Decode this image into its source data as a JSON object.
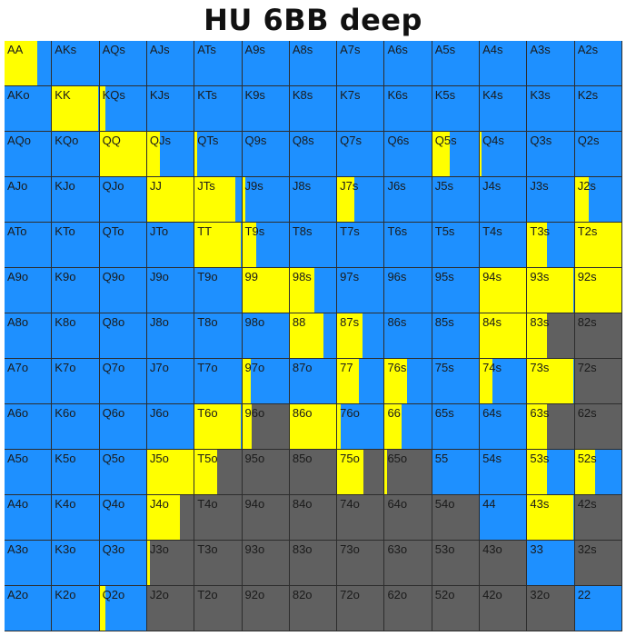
{
  "title": "HU 6BB deep",
  "colors": {
    "blue": "#1E90FF",
    "yellow": "#FFFF00",
    "gray": "#606060"
  },
  "chart_data": {
    "type": "heatmap",
    "title": "HU 6BB deep",
    "rows": [
      [
        {
          "l": "AA",
          "y": 0.7,
          "b": 0.3,
          "g": 0
        },
        {
          "l": "AKs",
          "y": 0,
          "b": 1,
          "g": 0
        },
        {
          "l": "AQs",
          "y": 0,
          "b": 1,
          "g": 0
        },
        {
          "l": "AJs",
          "y": 0,
          "b": 1,
          "g": 0
        },
        {
          "l": "ATs",
          "y": 0,
          "b": 1,
          "g": 0
        },
        {
          "l": "A9s",
          "y": 0,
          "b": 1,
          "g": 0
        },
        {
          "l": "A8s",
          "y": 0,
          "b": 1,
          "g": 0
        },
        {
          "l": "A7s",
          "y": 0,
          "b": 1,
          "g": 0
        },
        {
          "l": "A6s",
          "y": 0,
          "b": 1,
          "g": 0
        },
        {
          "l": "A5s",
          "y": 0,
          "b": 1,
          "g": 0
        },
        {
          "l": "A4s",
          "y": 0,
          "b": 1,
          "g": 0
        },
        {
          "l": "A3s",
          "y": 0,
          "b": 1,
          "g": 0
        },
        {
          "l": "A2s",
          "y": 0,
          "b": 1,
          "g": 0
        }
      ],
      [
        {
          "l": "AKo",
          "y": 0,
          "b": 1,
          "g": 0
        },
        {
          "l": "KK",
          "y": 1,
          "b": 0,
          "g": 0
        },
        {
          "l": "KQs",
          "y": 0.12,
          "b": 0.88,
          "g": 0
        },
        {
          "l": "KJs",
          "y": 0,
          "b": 1,
          "g": 0
        },
        {
          "l": "KTs",
          "y": 0,
          "b": 1,
          "g": 0
        },
        {
          "l": "K9s",
          "y": 0,
          "b": 1,
          "g": 0
        },
        {
          "l": "K8s",
          "y": 0,
          "b": 1,
          "g": 0
        },
        {
          "l": "K7s",
          "y": 0,
          "b": 1,
          "g": 0
        },
        {
          "l": "K6s",
          "y": 0,
          "b": 1,
          "g": 0
        },
        {
          "l": "K5s",
          "y": 0,
          "b": 1,
          "g": 0
        },
        {
          "l": "K4s",
          "y": 0,
          "b": 1,
          "g": 0
        },
        {
          "l": "K3s",
          "y": 0,
          "b": 1,
          "g": 0
        },
        {
          "l": "K2s",
          "y": 0,
          "b": 1,
          "g": 0
        }
      ],
      [
        {
          "l": "AQo",
          "y": 0,
          "b": 1,
          "g": 0
        },
        {
          "l": "KQo",
          "y": 0,
          "b": 1,
          "g": 0
        },
        {
          "l": "QQ",
          "y": 1,
          "b": 0,
          "g": 0
        },
        {
          "l": "QJs",
          "y": 0.27,
          "b": 0.73,
          "g": 0
        },
        {
          "l": "QTs",
          "y": 0.06,
          "b": 0.94,
          "g": 0
        },
        {
          "l": "Q9s",
          "y": 0,
          "b": 1,
          "g": 0
        },
        {
          "l": "Q8s",
          "y": 0,
          "b": 1,
          "g": 0
        },
        {
          "l": "Q7s",
          "y": 0,
          "b": 1,
          "g": 0
        },
        {
          "l": "Q6s",
          "y": 0,
          "b": 1,
          "g": 0
        },
        {
          "l": "Q5s",
          "y": 0.38,
          "b": 0.62,
          "g": 0
        },
        {
          "l": "Q4s",
          "y": 0.04,
          "b": 0.96,
          "g": 0
        },
        {
          "l": "Q3s",
          "y": 0,
          "b": 1,
          "g": 0
        },
        {
          "l": "Q2s",
          "y": 0,
          "b": 1,
          "g": 0
        }
      ],
      [
        {
          "l": "AJo",
          "y": 0,
          "b": 1,
          "g": 0
        },
        {
          "l": "KJo",
          "y": 0,
          "b": 1,
          "g": 0
        },
        {
          "l": "QJo",
          "y": 0,
          "b": 1,
          "g": 0
        },
        {
          "l": "JJ",
          "y": 1,
          "b": 0,
          "g": 0
        },
        {
          "l": "JTs",
          "y": 0.88,
          "b": 0.12,
          "g": 0
        },
        {
          "l": "J9s",
          "y": 0.06,
          "b": 0.94,
          "g": 0
        },
        {
          "l": "J8s",
          "y": 0,
          "b": 1,
          "g": 0
        },
        {
          "l": "J7s",
          "y": 0.38,
          "b": 0.62,
          "g": 0
        },
        {
          "l": "J6s",
          "y": 0,
          "b": 1,
          "g": 0
        },
        {
          "l": "J5s",
          "y": 0,
          "b": 1,
          "g": 0
        },
        {
          "l": "J4s",
          "y": 0,
          "b": 1,
          "g": 0
        },
        {
          "l": "J3s",
          "y": 0,
          "b": 1,
          "g": 0
        },
        {
          "l": "J2s",
          "y": 0.3,
          "b": 0.7,
          "g": 0
        }
      ],
      [
        {
          "l": "ATo",
          "y": 0,
          "b": 1,
          "g": 0
        },
        {
          "l": "KTo",
          "y": 0,
          "b": 1,
          "g": 0
        },
        {
          "l": "QTo",
          "y": 0,
          "b": 1,
          "g": 0
        },
        {
          "l": "JTo",
          "y": 0,
          "b": 1,
          "g": 0
        },
        {
          "l": "TT",
          "y": 1,
          "b": 0,
          "g": 0
        },
        {
          "l": "T9s",
          "y": 0.3,
          "b": 0.7,
          "g": 0
        },
        {
          "l": "T8s",
          "y": 0,
          "b": 1,
          "g": 0
        },
        {
          "l": "T7s",
          "y": 0,
          "b": 1,
          "g": 0
        },
        {
          "l": "T6s",
          "y": 0,
          "b": 1,
          "g": 0
        },
        {
          "l": "T5s",
          "y": 0,
          "b": 1,
          "g": 0
        },
        {
          "l": "T4s",
          "y": 0,
          "b": 1,
          "g": 0
        },
        {
          "l": "T3s",
          "y": 0.42,
          "b": 0.58,
          "g": 0
        },
        {
          "l": "T2s",
          "y": 1,
          "b": 0,
          "g": 0
        }
      ],
      [
        {
          "l": "A9o",
          "y": 0,
          "b": 1,
          "g": 0
        },
        {
          "l": "K9o",
          "y": 0,
          "b": 1,
          "g": 0
        },
        {
          "l": "Q9o",
          "y": 0,
          "b": 1,
          "g": 0
        },
        {
          "l": "J9o",
          "y": 0,
          "b": 1,
          "g": 0
        },
        {
          "l": "T9o",
          "y": 0,
          "b": 1,
          "g": 0
        },
        {
          "l": "99",
          "y": 1,
          "b": 0,
          "g": 0
        },
        {
          "l": "98s",
          "y": 0.52,
          "b": 0.48,
          "g": 0
        },
        {
          "l": "97s",
          "y": 0,
          "b": 1,
          "g": 0
        },
        {
          "l": "96s",
          "y": 0,
          "b": 1,
          "g": 0
        },
        {
          "l": "95s",
          "y": 0,
          "b": 1,
          "g": 0
        },
        {
          "l": "94s",
          "y": 1,
          "b": 0,
          "g": 0
        },
        {
          "l": "93s",
          "y": 1,
          "b": 0,
          "g": 0
        },
        {
          "l": "92s",
          "y": 1,
          "b": 0,
          "g": 0
        }
      ],
      [
        {
          "l": "A8o",
          "y": 0,
          "b": 1,
          "g": 0
        },
        {
          "l": "K8o",
          "y": 0,
          "b": 1,
          "g": 0
        },
        {
          "l": "Q8o",
          "y": 0,
          "b": 1,
          "g": 0
        },
        {
          "l": "J8o",
          "y": 0,
          "b": 1,
          "g": 0
        },
        {
          "l": "T8o",
          "y": 0,
          "b": 1,
          "g": 0
        },
        {
          "l": "98o",
          "y": 0,
          "b": 1,
          "g": 0
        },
        {
          "l": "88",
          "y": 0.72,
          "b": 0.28,
          "g": 0
        },
        {
          "l": "87s",
          "y": 0.54,
          "b": 0.46,
          "g": 0
        },
        {
          "l": "86s",
          "y": 0,
          "b": 1,
          "g": 0
        },
        {
          "l": "85s",
          "y": 0,
          "b": 1,
          "g": 0
        },
        {
          "l": "84s",
          "y": 1,
          "b": 0,
          "g": 0
        },
        {
          "l": "83s",
          "y": 0.42,
          "b": 0,
          "g": 0.58
        },
        {
          "l": "82s",
          "y": 0,
          "b": 0,
          "g": 1
        }
      ],
      [
        {
          "l": "A7o",
          "y": 0,
          "b": 1,
          "g": 0
        },
        {
          "l": "K7o",
          "y": 0,
          "b": 1,
          "g": 0
        },
        {
          "l": "Q7o",
          "y": 0,
          "b": 1,
          "g": 0
        },
        {
          "l": "J7o",
          "y": 0,
          "b": 1,
          "g": 0
        },
        {
          "l": "T7o",
          "y": 0,
          "b": 1,
          "g": 0
        },
        {
          "l": "97o",
          "y": 0.17,
          "b": 0.83,
          "g": 0
        },
        {
          "l": "87o",
          "y": 0,
          "b": 1,
          "g": 0
        },
        {
          "l": "77",
          "y": 0.46,
          "b": 0.54,
          "g": 0
        },
        {
          "l": "76s",
          "y": 0.48,
          "b": 0.52,
          "g": 0
        },
        {
          "l": "75s",
          "y": 0,
          "b": 1,
          "g": 0
        },
        {
          "l": "74s",
          "y": 0.27,
          "b": 0.73,
          "g": 0
        },
        {
          "l": "73s",
          "y": 1,
          "b": 0,
          "g": 0
        },
        {
          "l": "72s",
          "y": 0,
          "b": 0,
          "g": 1
        }
      ],
      [
        {
          "l": "A6o",
          "y": 0,
          "b": 1,
          "g": 0
        },
        {
          "l": "K6o",
          "y": 0,
          "b": 1,
          "g": 0
        },
        {
          "l": "Q6o",
          "y": 0,
          "b": 1,
          "g": 0
        },
        {
          "l": "J6o",
          "y": 0,
          "b": 1,
          "g": 0
        },
        {
          "l": "T6o",
          "y": 1,
          "b": 0,
          "g": 0
        },
        {
          "l": "96o",
          "y": 0.2,
          "b": 0,
          "g": 0.8
        },
        {
          "l": "86o",
          "y": 1,
          "b": 0,
          "g": 0
        },
        {
          "l": "76o",
          "y": 0.08,
          "b": 0.92,
          "g": 0
        },
        {
          "l": "66",
          "y": 0.38,
          "b": 0.62,
          "g": 0
        },
        {
          "l": "65s",
          "y": 0,
          "b": 1,
          "g": 0
        },
        {
          "l": "64s",
          "y": 0,
          "b": 1,
          "g": 0
        },
        {
          "l": "63s",
          "y": 0.42,
          "b": 0,
          "g": 0.58
        },
        {
          "l": "62s",
          "y": 0,
          "b": 0,
          "g": 1
        }
      ],
      [
        {
          "l": "A5o",
          "y": 0,
          "b": 1,
          "g": 0
        },
        {
          "l": "K5o",
          "y": 0,
          "b": 1,
          "g": 0
        },
        {
          "l": "Q5o",
          "y": 0,
          "b": 1,
          "g": 0
        },
        {
          "l": "J5o",
          "y": 1,
          "b": 0,
          "g": 0
        },
        {
          "l": "T5o",
          "y": 0.48,
          "b": 0,
          "g": 0.52
        },
        {
          "l": "95o",
          "y": 0,
          "b": 0,
          "g": 1
        },
        {
          "l": "85o",
          "y": 0,
          "b": 0,
          "g": 1
        },
        {
          "l": "75o",
          "y": 0.56,
          "b": 0,
          "g": 0.44
        },
        {
          "l": "65o",
          "y": 0.06,
          "b": 0,
          "g": 0.94
        },
        {
          "l": "55",
          "y": 0,
          "b": 1,
          "g": 0
        },
        {
          "l": "54s",
          "y": 0,
          "b": 1,
          "g": 0
        },
        {
          "l": "53s",
          "y": 0.42,
          "b": 0.58,
          "g": 0
        },
        {
          "l": "52s",
          "y": 0.42,
          "b": 0.58,
          "g": 0
        }
      ],
      [
        {
          "l": "A4o",
          "y": 0,
          "b": 1,
          "g": 0
        },
        {
          "l": "K4o",
          "y": 0,
          "b": 1,
          "g": 0
        },
        {
          "l": "Q4o",
          "y": 0,
          "b": 1,
          "g": 0
        },
        {
          "l": "J4o",
          "y": 0.7,
          "b": 0,
          "g": 0.3
        },
        {
          "l": "T4o",
          "y": 0,
          "b": 0,
          "g": 1
        },
        {
          "l": "94o",
          "y": 0,
          "b": 0,
          "g": 1
        },
        {
          "l": "84o",
          "y": 0,
          "b": 0,
          "g": 1
        },
        {
          "l": "74o",
          "y": 0,
          "b": 0,
          "g": 1
        },
        {
          "l": "64o",
          "y": 0,
          "b": 0,
          "g": 1
        },
        {
          "l": "54o",
          "y": 0,
          "b": 0,
          "g": 1
        },
        {
          "l": "44",
          "y": 0,
          "b": 1,
          "g": 0
        },
        {
          "l": "43s",
          "y": 1,
          "b": 0,
          "g": 0
        },
        {
          "l": "42s",
          "y": 0,
          "b": 0,
          "g": 1
        }
      ],
      [
        {
          "l": "A3o",
          "y": 0,
          "b": 1,
          "g": 0
        },
        {
          "l": "K3o",
          "y": 0,
          "b": 1,
          "g": 0
        },
        {
          "l": "Q3o",
          "y": 0,
          "b": 1,
          "g": 0
        },
        {
          "l": "J3o",
          "y": 0.06,
          "b": 0,
          "g": 0.94
        },
        {
          "l": "T3o",
          "y": 0,
          "b": 0,
          "g": 1
        },
        {
          "l": "93o",
          "y": 0,
          "b": 0,
          "g": 1
        },
        {
          "l": "83o",
          "y": 0,
          "b": 0,
          "g": 1
        },
        {
          "l": "73o",
          "y": 0,
          "b": 0,
          "g": 1
        },
        {
          "l": "63o",
          "y": 0,
          "b": 0,
          "g": 1
        },
        {
          "l": "53o",
          "y": 0,
          "b": 0,
          "g": 1
        },
        {
          "l": "43o",
          "y": 0,
          "b": 0,
          "g": 1
        },
        {
          "l": "33",
          "y": 0,
          "b": 1,
          "g": 0
        },
        {
          "l": "32s",
          "y": 0,
          "b": 0,
          "g": 1
        }
      ],
      [
        {
          "l": "A2o",
          "y": 0,
          "b": 1,
          "g": 0
        },
        {
          "l": "K2o",
          "y": 0,
          "b": 1,
          "g": 0
        },
        {
          "l": "Q2o",
          "y": 0.12,
          "b": 0.88,
          "g": 0
        },
        {
          "l": "J2o",
          "y": 0,
          "b": 0,
          "g": 1
        },
        {
          "l": "T2o",
          "y": 0,
          "b": 0,
          "g": 1
        },
        {
          "l": "92o",
          "y": 0,
          "b": 0,
          "g": 1
        },
        {
          "l": "82o",
          "y": 0,
          "b": 0,
          "g": 1
        },
        {
          "l": "72o",
          "y": 0,
          "b": 0,
          "g": 1
        },
        {
          "l": "62o",
          "y": 0,
          "b": 0,
          "g": 1
        },
        {
          "l": "52o",
          "y": 0,
          "b": 0,
          "g": 1
        },
        {
          "l": "42o",
          "y": 0,
          "b": 0,
          "g": 1
        },
        {
          "l": "32o",
          "y": 0,
          "b": 0,
          "g": 1
        },
        {
          "l": "22",
          "y": 0,
          "b": 1,
          "g": 0
        }
      ]
    ]
  }
}
